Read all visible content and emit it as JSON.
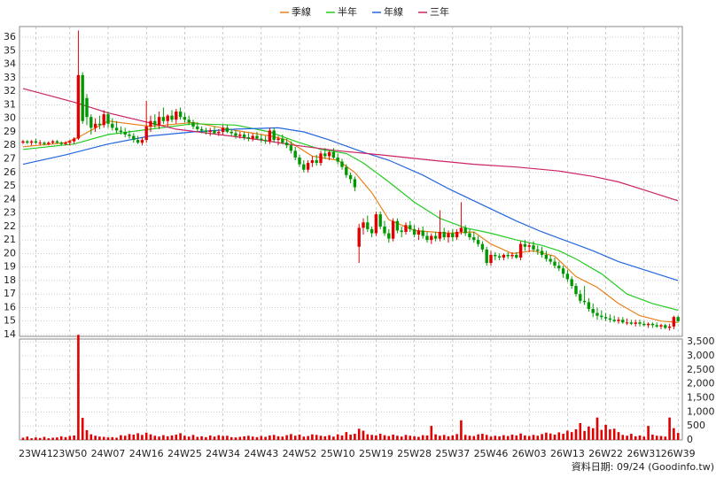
{
  "chart_data": {
    "type": "candlestick",
    "categories": [
      null,
      null,
      null,
      "23W41",
      null,
      null,
      null,
      null,
      null,
      null,
      null,
      "23W50",
      null,
      null,
      null,
      null,
      null,
      null,
      null,
      null,
      "24W07",
      null,
      null,
      null,
      null,
      null,
      null,
      null,
      null,
      "24W16",
      null,
      null,
      null,
      null,
      null,
      null,
      null,
      null,
      "24W25",
      null,
      null,
      null,
      null,
      null,
      null,
      null,
      null,
      "24W34",
      null,
      null,
      null,
      null,
      null,
      null,
      null,
      null,
      "24W43",
      null,
      null,
      null,
      null,
      null,
      null,
      null,
      null,
      "24W52",
      null,
      null,
      null,
      null,
      null,
      null,
      null,
      null,
      "25W10",
      null,
      null,
      null,
      null,
      null,
      null,
      null,
      null,
      "25W19",
      null,
      null,
      null,
      null,
      null,
      null,
      null,
      null,
      "25W28",
      null,
      null,
      null,
      null,
      null,
      null,
      null,
      null,
      "25W37",
      null,
      null,
      null,
      null,
      null,
      null,
      null,
      null,
      "25W46",
      null,
      null,
      null,
      null,
      null,
      null,
      null,
      null,
      "26W03",
      null,
      null,
      null,
      null,
      null,
      null,
      null,
      null,
      "26W13",
      null,
      null,
      null,
      null,
      null,
      null,
      null,
      null,
      "26W22",
      null,
      null,
      null,
      null,
      null,
      null,
      null,
      null,
      "26W31",
      null,
      null,
      null,
      null,
      null,
      null,
      null,
      "26W39"
    ],
    "candles": [
      [
        28.2,
        28.4,
        28.1,
        28.3
      ],
      [
        28.3,
        28.4,
        28.1,
        28.2
      ],
      [
        28.2,
        28.4,
        28.0,
        28.3
      ],
      [
        28.3,
        28.5,
        28.1,
        28.2
      ],
      [
        28.2,
        28.4,
        28.0,
        28.2
      ],
      [
        28.2,
        28.3,
        28.0,
        28.1
      ],
      [
        28.1,
        28.3,
        28.0,
        28.2
      ],
      [
        28.2,
        28.4,
        28.1,
        28.3
      ],
      [
        28.3,
        28.4,
        28.1,
        28.2
      ],
      [
        28.2,
        28.3,
        28.0,
        28.1
      ],
      [
        28.1,
        28.3,
        28.0,
        28.2
      ],
      [
        28.2,
        28.4,
        28.0,
        28.3
      ],
      [
        28.3,
        28.6,
        28.1,
        28.5
      ],
      [
        28.5,
        36.5,
        28.4,
        33.2
      ],
      [
        33.2,
        33.4,
        29.6,
        29.8
      ],
      [
        31.5,
        31.8,
        29.5,
        30.1
      ],
      [
        30.1,
        30.3,
        28.8,
        29.3
      ],
      [
        29.3,
        30.0,
        29.0,
        29.6
      ],
      [
        29.6,
        30.2,
        29.2,
        29.5
      ],
      [
        29.5,
        30.6,
        29.3,
        30.3
      ],
      [
        30.3,
        30.5,
        29.3,
        29.6
      ],
      [
        29.6,
        30.0,
        29.1,
        29.3
      ],
      [
        29.3,
        29.8,
        28.9,
        29.1
      ],
      [
        29.1,
        29.4,
        28.8,
        29.0
      ],
      [
        29.0,
        29.3,
        28.6,
        28.8
      ],
      [
        28.8,
        29.1,
        28.5,
        28.7
      ],
      [
        28.7,
        28.9,
        28.2,
        28.4
      ],
      [
        28.4,
        28.7,
        28.1,
        28.2
      ],
      [
        28.2,
        28.6,
        28.0,
        28.4
      ],
      [
        28.4,
        31.3,
        28.2,
        29.4
      ],
      [
        29.4,
        30.2,
        29.0,
        29.8
      ],
      [
        29.8,
        30.3,
        29.3,
        29.5
      ],
      [
        29.5,
        30.5,
        29.2,
        30.1
      ],
      [
        30.1,
        30.8,
        29.6,
        29.8
      ],
      [
        29.8,
        30.3,
        29.4,
        30.2
      ],
      [
        30.2,
        30.6,
        29.7,
        29.9
      ],
      [
        29.9,
        30.7,
        29.6,
        30.5
      ],
      [
        30.5,
        30.8,
        29.9,
        30.1
      ],
      [
        30.1,
        30.4,
        29.7,
        29.9
      ],
      [
        29.9,
        30.2,
        29.5,
        29.7
      ],
      [
        29.7,
        29.9,
        29.2,
        29.4
      ],
      [
        29.4,
        29.7,
        29.0,
        29.2
      ],
      [
        29.2,
        29.4,
        28.9,
        29.1
      ],
      [
        29.1,
        29.3,
        28.8,
        29.0
      ],
      [
        29.0,
        29.3,
        28.7,
        29.1
      ],
      [
        29.1,
        29.4,
        28.8,
        28.9
      ],
      [
        28.9,
        29.2,
        28.7,
        29.0
      ],
      [
        29.0,
        29.5,
        28.8,
        29.3
      ],
      [
        29.3,
        29.5,
        28.9,
        29.0
      ],
      [
        29.0,
        29.2,
        28.7,
        28.9
      ],
      [
        28.9,
        29.1,
        28.5,
        28.7
      ],
      [
        28.7,
        29.0,
        28.5,
        28.8
      ],
      [
        28.8,
        29.0,
        28.4,
        28.6
      ],
      [
        28.6,
        28.9,
        28.3,
        28.5
      ],
      [
        28.5,
        28.9,
        28.3,
        28.7
      ],
      [
        28.7,
        29.0,
        28.4,
        28.5
      ],
      [
        28.5,
        28.8,
        28.2,
        28.4
      ],
      [
        28.4,
        28.7,
        28.1,
        28.3
      ],
      [
        28.3,
        29.3,
        28.1,
        29.1
      ],
      [
        29.1,
        29.3,
        28.2,
        28.4
      ],
      [
        28.4,
        28.7,
        28.0,
        28.5
      ],
      [
        28.5,
        28.8,
        28.1,
        28.2
      ],
      [
        28.2,
        28.5,
        27.8,
        28.0
      ],
      [
        28.0,
        28.3,
        27.4,
        27.6
      ],
      [
        27.6,
        27.9,
        26.9,
        27.1
      ],
      [
        27.1,
        27.3,
        26.4,
        26.6
      ],
      [
        26.6,
        26.9,
        26.0,
        26.2
      ],
      [
        26.2,
        26.9,
        26.0,
        26.7
      ],
      [
        26.7,
        27.2,
        26.4,
        26.9
      ],
      [
        26.9,
        27.3,
        26.5,
        26.7
      ],
      [
        26.7,
        27.6,
        26.5,
        27.4
      ],
      [
        27.4,
        27.8,
        27.0,
        27.2
      ],
      [
        27.2,
        27.6,
        26.9,
        27.5
      ],
      [
        27.5,
        27.8,
        27.0,
        27.1
      ],
      [
        27.1,
        27.4,
        26.6,
        26.8
      ],
      [
        26.8,
        27.0,
        26.2,
        26.4
      ],
      [
        26.4,
        26.6,
        25.6,
        25.8
      ],
      [
        25.8,
        26.0,
        25.2,
        25.5
      ],
      [
        25.5,
        25.7,
        24.6,
        24.9
      ],
      [
        20.5,
        22.2,
        19.3,
        21.9
      ],
      [
        21.9,
        22.6,
        21.4,
        22.3
      ],
      [
        22.3,
        22.8,
        21.6,
        21.8
      ],
      [
        21.8,
        22.0,
        21.2,
        21.5
      ],
      [
        21.5,
        23.1,
        21.3,
        22.9
      ],
      [
        22.9,
        23.1,
        21.8,
        22.0
      ],
      [
        22.0,
        22.4,
        21.3,
        21.5
      ],
      [
        21.5,
        21.8,
        20.8,
        21.1
      ],
      [
        21.1,
        22.6,
        20.9,
        22.4
      ],
      [
        22.4,
        22.6,
        21.5,
        21.7
      ],
      [
        21.7,
        22.0,
        21.2,
        21.6
      ],
      [
        21.6,
        22.3,
        21.4,
        22.1
      ],
      [
        22.1,
        22.4,
        21.6,
        21.8
      ],
      [
        21.8,
        22.1,
        21.2,
        21.4
      ],
      [
        21.4,
        21.9,
        21.0,
        21.7
      ],
      [
        21.7,
        22.0,
        21.1,
        21.3
      ],
      [
        21.3,
        21.6,
        20.8,
        21.0
      ],
      [
        21.0,
        21.5,
        20.7,
        21.3
      ],
      [
        21.3,
        21.6,
        20.9,
        21.1
      ],
      [
        21.1,
        23.2,
        20.9,
        21.6
      ],
      [
        21.6,
        21.9,
        21.0,
        21.2
      ],
      [
        21.2,
        21.7,
        20.8,
        21.5
      ],
      [
        21.5,
        21.8,
        20.9,
        21.2
      ],
      [
        21.2,
        21.8,
        21.0,
        21.6
      ],
      [
        21.6,
        23.8,
        21.4,
        21.9
      ],
      [
        21.9,
        22.1,
        21.3,
        21.5
      ],
      [
        21.5,
        21.8,
        21.0,
        21.2
      ],
      [
        21.2,
        21.6,
        20.8,
        21.0
      ],
      [
        21.0,
        21.3,
        20.5,
        20.7
      ],
      [
        20.7,
        20.9,
        20.1,
        20.3
      ],
      [
        20.3,
        20.5,
        19.1,
        19.3
      ],
      [
        19.3,
        20.2,
        19.1,
        19.9
      ],
      [
        19.9,
        20.1,
        19.5,
        19.8
      ],
      [
        19.8,
        20.0,
        19.5,
        19.7
      ],
      [
        19.7,
        20.0,
        19.5,
        19.9
      ],
      [
        19.9,
        20.1,
        19.6,
        19.8
      ],
      [
        19.8,
        20.1,
        19.6,
        19.9
      ],
      [
        19.9,
        20.1,
        19.6,
        19.7
      ],
      [
        19.7,
        20.9,
        19.5,
        20.7
      ],
      [
        20.7,
        21.0,
        20.2,
        20.5
      ],
      [
        20.5,
        20.8,
        20.1,
        20.6
      ],
      [
        20.6,
        20.9,
        20.1,
        20.3
      ],
      [
        20.3,
        20.6,
        19.9,
        20.2
      ],
      [
        20.2,
        20.5,
        19.7,
        19.9
      ],
      [
        19.9,
        20.2,
        19.4,
        19.6
      ],
      [
        19.6,
        19.9,
        19.2,
        19.4
      ],
      [
        19.4,
        19.7,
        18.9,
        19.1
      ],
      [
        19.1,
        19.4,
        18.7,
        18.9
      ],
      [
        18.9,
        19.1,
        18.2,
        18.5
      ],
      [
        18.5,
        18.8,
        17.9,
        18.1
      ],
      [
        18.1,
        18.3,
        17.4,
        17.6
      ],
      [
        17.6,
        17.8,
        16.8,
        17.0
      ],
      [
        17.0,
        17.3,
        16.3,
        16.5
      ],
      [
        16.5,
        17.6,
        16.2,
        16.4
      ],
      [
        16.4,
        16.7,
        15.7,
        15.9
      ],
      [
        15.9,
        16.3,
        15.3,
        15.6
      ],
      [
        15.6,
        16.0,
        15.1,
        15.4
      ],
      [
        15.4,
        15.8,
        15.1,
        15.3
      ],
      [
        15.3,
        15.6,
        15.0,
        15.2
      ],
      [
        15.2,
        15.5,
        14.9,
        15.1
      ],
      [
        15.1,
        15.4,
        14.9,
        15.0
      ],
      [
        15.0,
        15.3,
        14.8,
        15.1
      ],
      [
        15.1,
        15.3,
        14.8,
        14.9
      ],
      [
        14.9,
        15.2,
        14.7,
        14.9
      ],
      [
        14.9,
        15.1,
        14.7,
        14.8
      ],
      [
        14.8,
        15.1,
        14.6,
        14.9
      ],
      [
        14.9,
        15.1,
        14.6,
        14.8
      ],
      [
        14.8,
        15.0,
        14.6,
        14.7
      ],
      [
        14.7,
        14.9,
        14.5,
        14.8
      ],
      [
        14.8,
        14.9,
        14.5,
        14.7
      ],
      [
        14.7,
        14.9,
        14.5,
        14.6
      ],
      [
        14.6,
        14.8,
        14.4,
        14.7
      ],
      [
        14.7,
        14.8,
        14.4,
        14.5
      ],
      [
        14.5,
        14.8,
        14.3,
        14.6
      ],
      [
        14.6,
        15.4,
        14.4,
        15.3
      ],
      [
        15.3,
        15.4,
        14.9,
        15.0
      ]
    ],
    "up_color": "#e00000",
    "down_color": "#009900",
    "ylim": [
      13.87,
      36.79
    ],
    "yticks": [
      14,
      15,
      16,
      17,
      18,
      19,
      20,
      21,
      22,
      23,
      24,
      25,
      26,
      27,
      28,
      29,
      30,
      31,
      32,
      33,
      34,
      35,
      36
    ],
    "grid": true,
    "series": [
      {
        "name": "季線",
        "color": "#e8801a",
        "x": [
          0,
          10,
          13,
          20,
          30,
          40,
          50,
          58,
          62,
          68,
          74,
          78,
          82,
          86,
          92,
          100,
          106,
          110,
          115,
          120,
          125,
          130,
          135,
          140,
          145,
          150,
          154
        ],
        "values": [
          27.9,
          28.2,
          28.6,
          29.8,
          29.4,
          29.7,
          29.1,
          28.7,
          28.4,
          27.2,
          26.9,
          26.0,
          24.5,
          22.5,
          21.7,
          21.5,
          21.6,
          20.7,
          20.0,
          20.2,
          19.8,
          18.3,
          17.5,
          16.3,
          15.4,
          15.0,
          14.9
        ]
      },
      {
        "name": "半年",
        "color": "#22cc22",
        "x": [
          0,
          12,
          20,
          30,
          40,
          50,
          58,
          64,
          70,
          76,
          80,
          86,
          92,
          98,
          104,
          110,
          116,
          122,
          126,
          130,
          136,
          142,
          148,
          154
        ],
        "values": [
          27.7,
          28.1,
          28.8,
          29.2,
          29.6,
          29.5,
          29.0,
          28.3,
          27.7,
          27.4,
          26.7,
          25.3,
          23.8,
          22.6,
          21.9,
          21.5,
          21.0,
          20.6,
          20.2,
          19.6,
          18.5,
          17.0,
          16.3,
          15.8
        ]
      },
      {
        "name": "年線",
        "color": "#2266dd",
        "x": [
          0,
          10,
          20,
          30,
          40,
          50,
          60,
          66,
          72,
          80,
          86,
          94,
          100,
          108,
          116,
          122,
          128,
          134,
          140,
          148,
          154
        ],
        "values": [
          26.6,
          27.3,
          28.1,
          28.7,
          29.0,
          29.2,
          29.3,
          29.0,
          28.4,
          27.5,
          26.9,
          25.8,
          24.8,
          23.6,
          22.4,
          21.6,
          20.9,
          20.2,
          19.4,
          18.6,
          18.0
        ]
      },
      {
        "name": "三年",
        "color": "#cc2266",
        "x": [
          0,
          6,
          12,
          20,
          28,
          36,
          46,
          56,
          64,
          74,
          84,
          96,
          106,
          116,
          126,
          134,
          140,
          146,
          154
        ],
        "values": [
          32.2,
          31.7,
          31.2,
          30.4,
          29.8,
          29.2,
          28.8,
          28.4,
          28.0,
          27.6,
          27.3,
          26.9,
          26.6,
          26.4,
          26.1,
          25.7,
          25.3,
          24.7,
          23.9
        ]
      }
    ],
    "volume": {
      "color": "#e00000",
      "values": [
        80,
        120,
        60,
        90,
        70,
        110,
        60,
        80,
        90,
        130,
        100,
        140,
        160,
        3750,
        790,
        350,
        200,
        150,
        120,
        110,
        90,
        100,
        80,
        170,
        150,
        210,
        190,
        240,
        180,
        260,
        200,
        150,
        120,
        170,
        130,
        160,
        190,
        240,
        150,
        120,
        180,
        110,
        130,
        100,
        160,
        120,
        170,
        140,
        150,
        100,
        90,
        110,
        130,
        150,
        120,
        100,
        140,
        110,
        160,
        180,
        130,
        120,
        170,
        210,
        150,
        190,
        120,
        140,
        200,
        180,
        150,
        130,
        170,
        120,
        200,
        160,
        280,
        190,
        220,
        400,
        330,
        200,
        180,
        160,
        220,
        170,
        140,
        190,
        150,
        120,
        180,
        150,
        130,
        110,
        170,
        160,
        500,
        200,
        150,
        180,
        130,
        160,
        210,
        700,
        180,
        150,
        140,
        200,
        220,
        180,
        120,
        150,
        130,
        170,
        140,
        190,
        160,
        230,
        160,
        140,
        180,
        150,
        210,
        260,
        230,
        190,
        270,
        220,
        330,
        280,
        380,
        600,
        320,
        480,
        420,
        800,
        360,
        540,
        380,
        400,
        280,
        180,
        150,
        220,
        130,
        160,
        120,
        500,
        190,
        150,
        140,
        120,
        800,
        420,
        250
      ],
      "ylim": [
        0,
        3600
      ],
      "yticks": [
        0,
        500,
        {
          "value": 1000,
          "label": "1,000"
        },
        {
          "value": 1500,
          "label": "1,500"
        },
        {
          "value": 2000,
          "label": "2,000"
        },
        {
          "value": 2500,
          "label": "2,500"
        },
        {
          "value": 3000,
          "label": "3,000"
        },
        {
          "value": 3500,
          "label": "3,500"
        }
      ]
    },
    "footer": "資料日期: 09/24 (Goodinfo.tw)"
  }
}
